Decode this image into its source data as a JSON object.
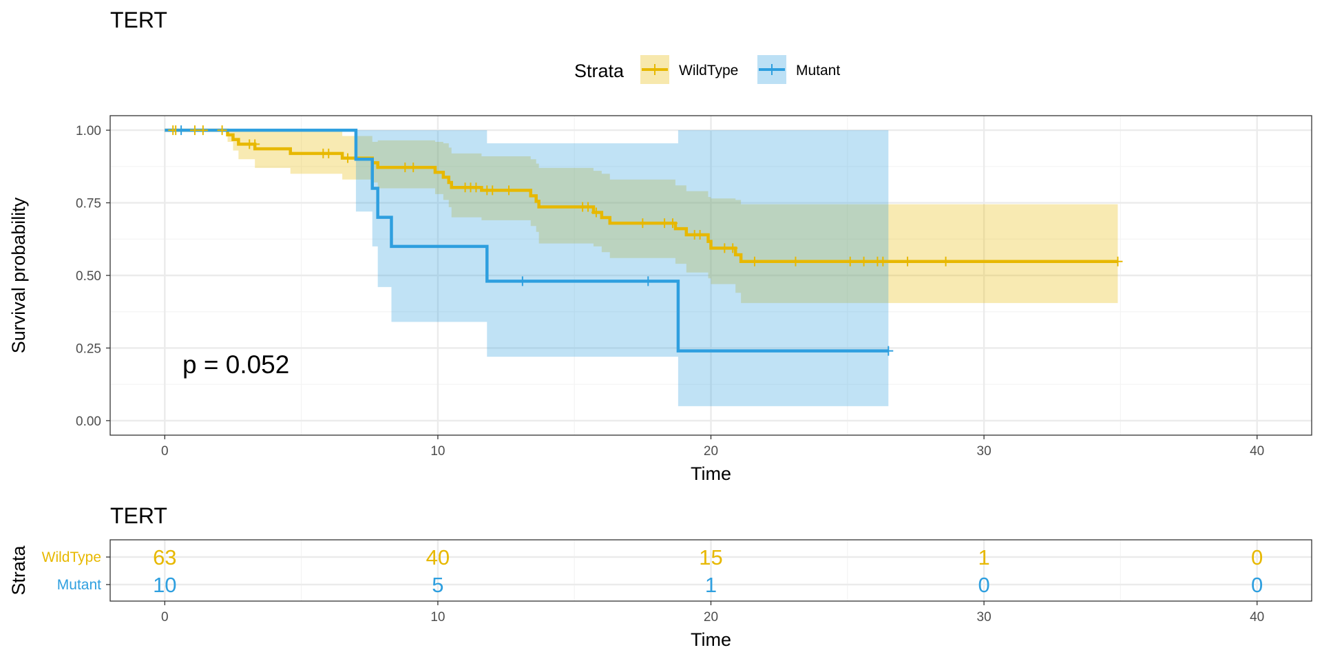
{
  "colors": {
    "wildtype": "#E7B800",
    "mutant": "#2E9FDF",
    "panel_border": "#333333",
    "grid_major": "#EBEBEB",
    "grid_minor": "#F4F4F4"
  },
  "chart_data": [
    {
      "type": "line",
      "subtype": "kaplan-meier",
      "title": "TERT",
      "xlabel": "Time",
      "ylabel": "Survival probability",
      "xlim": [
        -2,
        42
      ],
      "ylim": [
        -0.05,
        1.05
      ],
      "x_ticks": [
        "0",
        "10",
        "20",
        "30",
        "40"
      ],
      "y_ticks": [
        "0.00",
        "0.25",
        "0.50",
        "0.75",
        "1.00"
      ],
      "x_tick_values": [
        0,
        10,
        20,
        30,
        40
      ],
      "y_tick_values": [
        0,
        0.25,
        0.5,
        0.75,
        1.0
      ],
      "grid": true,
      "legend": {
        "title": "Strata",
        "position": "top",
        "entries": [
          "WildType",
          "Mutant"
        ]
      },
      "annotation": "p = 0.052",
      "series": [
        {
          "name": "WildType",
          "color": "#E7B800",
          "steps": [
            [
              0,
              1.0
            ],
            [
              2.3,
              0.984
            ],
            [
              2.5,
              0.968
            ],
            [
              2.7,
              0.952
            ],
            [
              3.3,
              0.936
            ],
            [
              4.6,
              0.92
            ],
            [
              6.5,
              0.904
            ],
            [
              7.6,
              0.888
            ],
            [
              7.8,
              0.872
            ],
            [
              9.9,
              0.855
            ],
            [
              10.2,
              0.838
            ],
            [
              10.4,
              0.82
            ],
            [
              10.5,
              0.803
            ],
            [
              11.6,
              0.793
            ],
            [
              13.4,
              0.774
            ],
            [
              13.6,
              0.755
            ],
            [
              13.7,
              0.736
            ],
            [
              15.7,
              0.717
            ],
            [
              16.0,
              0.699
            ],
            [
              16.3,
              0.68
            ],
            [
              18.7,
              0.661
            ],
            [
              19.1,
              0.64
            ],
            [
              19.9,
              0.617
            ],
            [
              20.0,
              0.594
            ],
            [
              20.9,
              0.571
            ],
            [
              21.1,
              0.548
            ],
            [
              34.9,
              0.548
            ]
          ],
          "upper": [
            [
              0,
              1.0
            ],
            [
              2.3,
              1.0
            ],
            [
              2.5,
              1.0
            ],
            [
              2.7,
              1.0
            ],
            [
              3.3,
              1.0
            ],
            [
              4.6,
              1.0
            ],
            [
              6.5,
              0.98
            ],
            [
              7.6,
              0.96
            ],
            [
              7.8,
              0.965
            ],
            [
              9.9,
              0.96
            ],
            [
              10.2,
              0.955
            ],
            [
              10.4,
              0.94
            ],
            [
              10.5,
              0.92
            ],
            [
              11.6,
              0.91
            ],
            [
              13.4,
              0.9
            ],
            [
              13.6,
              0.885
            ],
            [
              13.7,
              0.87
            ],
            [
              15.7,
              0.86
            ],
            [
              16.0,
              0.85
            ],
            [
              16.3,
              0.83
            ],
            [
              18.7,
              0.81
            ],
            [
              19.1,
              0.79
            ],
            [
              19.9,
              0.77
            ],
            [
              20.0,
              0.765
            ],
            [
              20.9,
              0.76
            ],
            [
              21.1,
              0.745
            ],
            [
              34.9,
              0.745
            ]
          ],
          "lower": [
            [
              0,
              1.0
            ],
            [
              2.3,
              0.96
            ],
            [
              2.5,
              0.93
            ],
            [
              2.7,
              0.9
            ],
            [
              3.3,
              0.87
            ],
            [
              4.6,
              0.85
            ],
            [
              6.5,
              0.83
            ],
            [
              7.6,
              0.82
            ],
            [
              7.8,
              0.8
            ],
            [
              9.9,
              0.78
            ],
            [
              10.2,
              0.76
            ],
            [
              10.4,
              0.735
            ],
            [
              10.5,
              0.7
            ],
            [
              11.6,
              0.69
            ],
            [
              13.4,
              0.67
            ],
            [
              13.6,
              0.65
            ],
            [
              13.7,
              0.61
            ],
            [
              15.7,
              0.6
            ],
            [
              16.0,
              0.58
            ],
            [
              16.3,
              0.56
            ],
            [
              18.7,
              0.54
            ],
            [
              19.1,
              0.51
            ],
            [
              19.9,
              0.49
            ],
            [
              20.0,
              0.47
            ],
            [
              20.9,
              0.44
            ],
            [
              21.1,
              0.405
            ],
            [
              34.9,
              0.405
            ]
          ],
          "censors": [
            [
              0.3,
              1.0
            ],
            [
              0.4,
              1.0
            ],
            [
              1.1,
              1.0
            ],
            [
              1.4,
              1.0
            ],
            [
              2.1,
              1.0
            ],
            [
              3.1,
              0.952
            ],
            [
              3.3,
              0.952
            ],
            [
              5.8,
              0.92
            ],
            [
              6.0,
              0.92
            ],
            [
              6.7,
              0.904
            ],
            [
              8.8,
              0.872
            ],
            [
              9.1,
              0.872
            ],
            [
              11.0,
              0.803
            ],
            [
              11.2,
              0.803
            ],
            [
              11.4,
              0.803
            ],
            [
              11.8,
              0.793
            ],
            [
              12.0,
              0.793
            ],
            [
              12.6,
              0.793
            ],
            [
              15.3,
              0.736
            ],
            [
              15.5,
              0.736
            ],
            [
              15.8,
              0.717
            ],
            [
              17.5,
              0.68
            ],
            [
              18.3,
              0.68
            ],
            [
              18.6,
              0.68
            ],
            [
              19.4,
              0.64
            ],
            [
              19.6,
              0.64
            ],
            [
              20.5,
              0.594
            ],
            [
              20.8,
              0.594
            ],
            [
              21.6,
              0.548
            ],
            [
              23.1,
              0.548
            ],
            [
              25.1,
              0.548
            ],
            [
              25.6,
              0.548
            ],
            [
              26.1,
              0.548
            ],
            [
              26.3,
              0.548
            ],
            [
              27.2,
              0.548
            ],
            [
              28.6,
              0.548
            ],
            [
              34.9,
              0.548
            ]
          ]
        },
        {
          "name": "Mutant",
          "color": "#2E9FDF",
          "steps": [
            [
              0,
              1.0
            ],
            [
              7.0,
              0.9
            ],
            [
              7.6,
              0.8
            ],
            [
              7.8,
              0.7
            ],
            [
              8.3,
              0.6
            ],
            [
              11.8,
              0.48
            ],
            [
              18.8,
              0.24
            ],
            [
              26.5,
              0.24
            ]
          ],
          "upper": [
            [
              0,
              1.0
            ],
            [
              7.0,
              1.0
            ],
            [
              7.6,
              1.0
            ],
            [
              7.8,
              1.0
            ],
            [
              8.3,
              1.0
            ],
            [
              11.8,
              0.955
            ],
            [
              18.8,
              1.0
            ],
            [
              26.5,
              1.0
            ]
          ],
          "lower": [
            [
              0,
              1.0
            ],
            [
              7.0,
              0.72
            ],
            [
              7.6,
              0.6
            ],
            [
              7.8,
              0.46
            ],
            [
              8.3,
              0.34
            ],
            [
              11.8,
              0.22
            ],
            [
              18.8,
              0.05
            ],
            [
              26.5,
              0.05
            ]
          ],
          "censors": [
            [
              0.6,
              1.0
            ],
            [
              13.1,
              0.48
            ],
            [
              17.7,
              0.48
            ],
            [
              26.5,
              0.24
            ]
          ]
        }
      ]
    },
    {
      "type": "table",
      "subtype": "risk-table",
      "title": "TERT",
      "xlabel": "Time",
      "ylabel": "Strata",
      "xlim": [
        -2,
        42
      ],
      "x_ticks": [
        "0",
        "10",
        "20",
        "30",
        "40"
      ],
      "x_tick_values": [
        0,
        10,
        20,
        30,
        40
      ],
      "rows": [
        {
          "name": "WildType",
          "color": "#E7B800",
          "values": [
            "63",
            "40",
            "15",
            "1",
            "0"
          ]
        },
        {
          "name": "Mutant",
          "color": "#2E9FDF",
          "values": [
            "10",
            "5",
            "1",
            "0",
            "0"
          ]
        }
      ]
    }
  ]
}
